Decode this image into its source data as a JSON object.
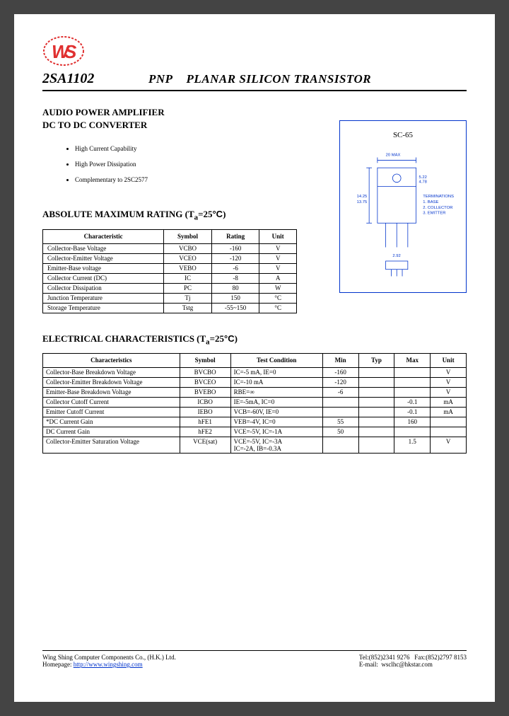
{
  "part_number": "2SA1102",
  "title_prefix": "PNP",
  "title_rest": "PLANAR SILICON TRANSISTOR",
  "app_line1": "AUDIO POWER AMPLIFIER",
  "app_line2": "DC TO DC CONVERTER",
  "features": [
    "High Current Capability",
    "High Power Dissipation",
    "Complementary to 2SC2577"
  ],
  "package": {
    "label": "SC-65",
    "terminations_title": "TERMINATIONS",
    "terminations": [
      "1. BASE",
      "2. COLLECTOR",
      "3. EMITTER"
    ]
  },
  "ratings": {
    "title": "ABSOLUTE MAXIMUM RATING (Ta=25°C)",
    "columns": [
      "Characteristic",
      "Symbol",
      "Rating",
      "Unit"
    ],
    "rows": [
      [
        "Collector-Base Voltage",
        "VCBO",
        "-160",
        "V"
      ],
      [
        "Collector-Emitter Voltage",
        "VCEO",
        "-120",
        "V"
      ],
      [
        "Emitter-Base voltage",
        "VEBO",
        "-6",
        "V"
      ],
      [
        "Collector Current (DC)",
        "IC",
        "-8",
        "A"
      ],
      [
        "Collector Dissipation",
        "PC",
        "80",
        "W"
      ],
      [
        "Junction Temperature",
        "Tj",
        "150",
        "°C"
      ],
      [
        "Storage Temperature",
        "Tstg",
        "-55~150",
        "°C"
      ]
    ]
  },
  "electrical": {
    "title": "ELECTRICAL CHARACTERISTICS (Ta=25°C)",
    "columns": [
      "Characteristics",
      "Symbol",
      "Test Condition",
      "Min",
      "Typ",
      "Max",
      "Unit"
    ],
    "rows": [
      [
        "Collector-Base Breakdown Voltage",
        "BVCBO",
        "IC=-5 mA, IE=0",
        "-160",
        "",
        "",
        "V"
      ],
      [
        "Collector-Emitter Breakdown Voltage",
        "BVCEO",
        "IC=-10 mA",
        "-120",
        "",
        "",
        "V"
      ],
      [
        "Emitter-Base Breakdown Voltage",
        "BVEBO",
        "RBE=∞",
        "-6",
        "",
        "",
        "V"
      ],
      [
        "Collector Cutoff Current",
        "ICBO",
        "IE=-5mA, IC=0",
        "",
        "",
        "-0.1",
        "mA"
      ],
      [
        "Emitter Cutoff Current",
        "IEBO",
        "VCB=-60V, IE=0",
        "",
        "",
        "-0.1",
        "mA"
      ],
      [
        "*DC Current Gain",
        "hFE1",
        "VEB=-4V, IC=0",
        "55",
        "",
        "160",
        ""
      ],
      [
        "DC Current Gain",
        "hFE2",
        "VCE=-5V, IC=-1A",
        "50",
        "",
        "",
        ""
      ],
      [
        "Collector-Emitter Saturation Voltage",
        "VCE(sat)",
        "VCE=-5V, IC=-3A\nIC=-2A, IB=-0.3A",
        "",
        "",
        "1.5",
        "V"
      ]
    ]
  },
  "footer": {
    "company": "Wing Shing Computer Components Co., (H.K.) Ltd.",
    "homepage_label": "Homepage:",
    "homepage_url": "http://www.wingshing.com",
    "tel": "Tel:(852)2341 9276",
    "fax": "Fax:(852)2797 8153",
    "email_label": "E-mail:",
    "email": "wsclhc@hkstar.com"
  },
  "colors": {
    "logo_red": "#e03030",
    "link_blue": "#0033cc",
    "border": "#000000"
  }
}
